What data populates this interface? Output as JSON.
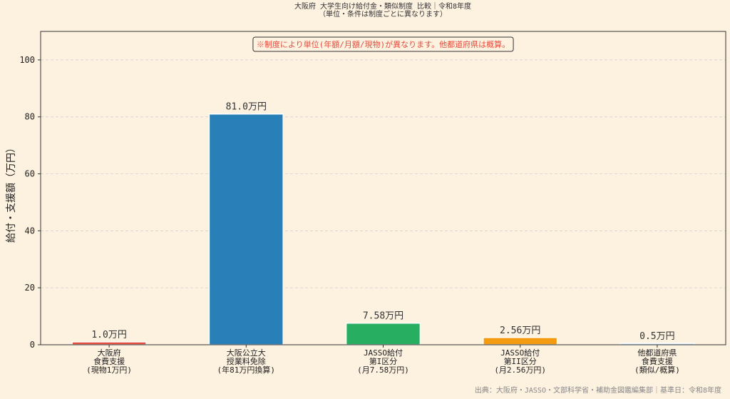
{
  "chart_data": {
    "type": "bar",
    "title": "大阪府 大学生向け給付金・類似制度 比較｜令和8年度",
    "subtitle": "（単位・条件は制度ごとに異なります）",
    "y_label": "給付・支援額（万円）",
    "annotation": "※制度により単位(年額/月額/現物)が異なります。他都道府県は概算。",
    "source": "出典：大阪府・JASSO・文部科学省・補助金図鑑編集部｜基準日：令和8年度",
    "categories": [
      "大阪府\n食費支援\n(現物1万円)",
      "大阪公立大\n授業料免除\n(年81万円換算)",
      "JASSO給付\n第I区分\n(月7.58万円)",
      "JASSO給付\n第II区分\n(月2.56万円)",
      "他都道府県\n食費支援\n(類似/概算)"
    ],
    "values": [
      1.0,
      81.0,
      7.58,
      2.56,
      0.5
    ],
    "value_labels": [
      "1.0万円",
      "81.0万円",
      "7.58万円",
      "2.56万円",
      "0.5万円"
    ],
    "colors": [
      "#e74c3c",
      "#2980b9",
      "#27ae60",
      "#f39c12",
      "#aed6f1"
    ],
    "ylim": [
      0,
      110
    ],
    "yticks": [
      0,
      20,
      40,
      60,
      80,
      100
    ],
    "grid": true
  }
}
